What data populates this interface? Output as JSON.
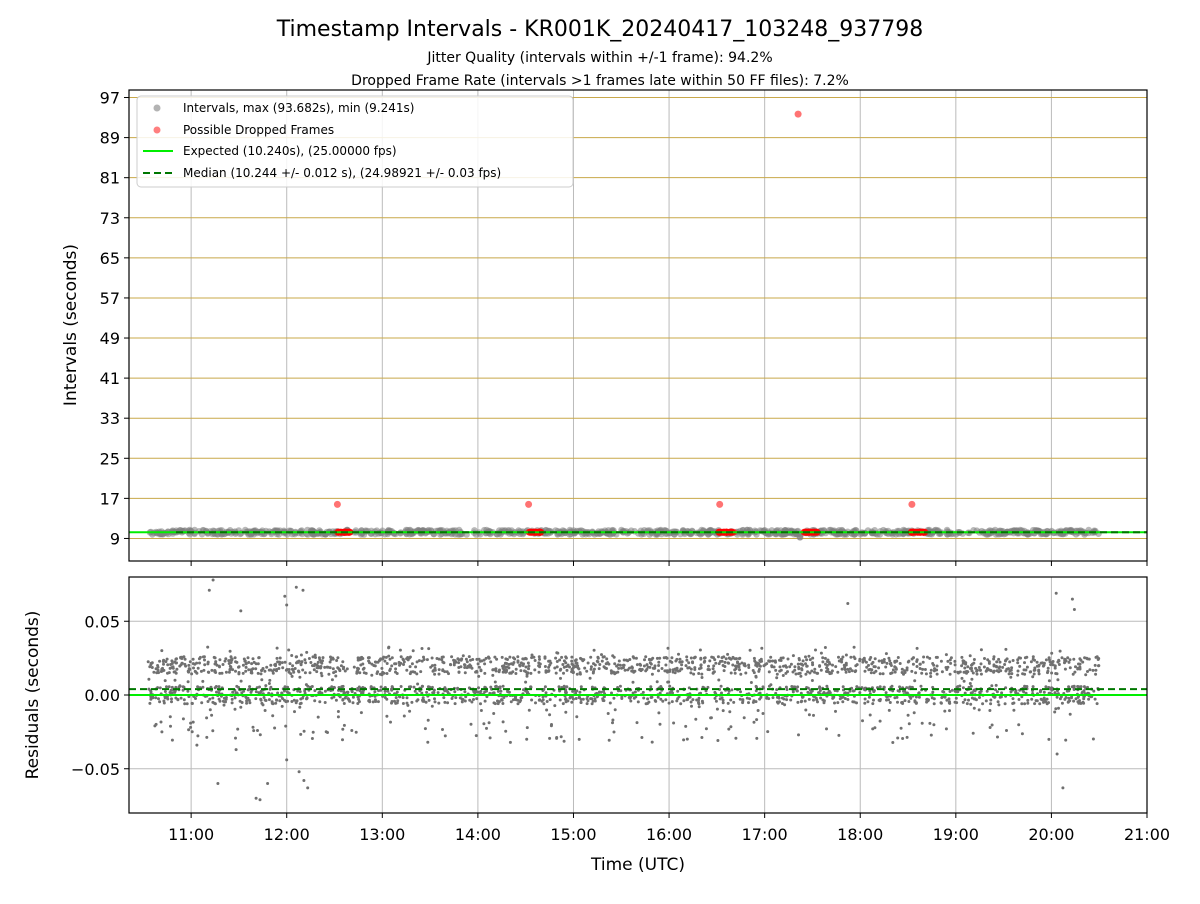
{
  "title": "Timestamp Intervals - KR001K_20240417_103248_937798",
  "subtitle_1": "Jitter Quality (intervals within +/-1 frame): 94.2%",
  "subtitle_2": "Dropped Frame Rate (intervals >1 frames late within 50 FF files): 7.2%",
  "chart_data": [
    {
      "type": "scatter",
      "ylabel": "Intervals (seconds)",
      "x_ticks": [
        "11:00",
        "12:00",
        "13:00",
        "14:00",
        "15:00",
        "16:00",
        "17:00",
        "18:00",
        "19:00",
        "20:00",
        "21:00"
      ],
      "y_ticks": [
        9,
        17,
        25,
        33,
        41,
        49,
        57,
        65,
        73,
        81,
        89,
        97
      ],
      "xlim_hours": [
        10.35,
        21.0
      ],
      "ylim": [
        4.5,
        98.5
      ],
      "grid": true,
      "legend_position": "top-left",
      "colors": {
        "intervals": "#808080",
        "dropped": "#ff0000",
        "expected": "#00ee00",
        "median": "#007700",
        "hgrid": "#c8a84a",
        "vgrid": "#bbbbbb"
      },
      "legend": [
        "Intervals, max (93.682s), min (9.241s)",
        "Possible Dropped Frames",
        "Expected (10.240s), (25.00000 fps)",
        "Median (10.244 +/- 0.012 s), (24.98921 +/- 0.03 fps)"
      ],
      "series": [
        {
          "name": "Intervals, max (93.682s), min (9.241s)",
          "x_range": [
            10.55,
            20.5
          ],
          "y_typical": 10.24,
          "min": 9.241
        },
        {
          "name": "Possible Dropped Frames",
          "points": [
            {
              "x": 12.53,
              "y": 15.8
            },
            {
              "x": 14.53,
              "y": 15.8
            },
            {
              "x": 16.53,
              "y": 15.8
            },
            {
              "x": 17.35,
              "y": 93.682
            },
            {
              "x": 18.54,
              "y": 15.8
            }
          ],
          "clusters": [
            [
              12.53,
              12.67
            ],
            [
              14.52,
              14.67
            ],
            [
              16.52,
              16.68
            ],
            [
              17.4,
              17.55
            ],
            [
              18.53,
              18.68
            ]
          ],
          "cluster_y": 10.24
        },
        {
          "name": "Expected (10.240s), (25.00000 fps)",
          "y": 10.24
        },
        {
          "name": "Median (10.244 +/- 0.012 s), (24.98921 +/- 0.03 fps)",
          "y": 10.244
        }
      ]
    },
    {
      "type": "scatter",
      "xlabel": "Time (UTC)",
      "ylabel": "Residuals (seconds)",
      "x_ticks": [
        "11:00",
        "12:00",
        "13:00",
        "14:00",
        "15:00",
        "16:00",
        "17:00",
        "18:00",
        "19:00",
        "20:00",
        "21:00"
      ],
      "y_ticks": [
        "0.05",
        "0.00",
        "−0.05"
      ],
      "y_tick_values": [
        0.05,
        0.0,
        -0.05
      ],
      "xlim_hours": [
        10.35,
        21.0
      ],
      "ylim": [
        -0.08,
        0.08
      ],
      "grid": true,
      "series": [
        {
          "name": "Residuals",
          "x_range": [
            10.55,
            20.5
          ],
          "y_range": [
            -0.072,
            0.078
          ]
        },
        {
          "name": "Expected",
          "y": 0.0
        },
        {
          "name": "Median",
          "y": 0.004
        }
      ],
      "outliers": [
        {
          "x": 11.23,
          "y": 0.078
        },
        {
          "x": 11.19,
          "y": 0.071
        },
        {
          "x": 11.52,
          "y": 0.057
        },
        {
          "x": 12.1,
          "y": 0.073
        },
        {
          "x": 11.98,
          "y": 0.067
        },
        {
          "x": 12.0,
          "y": 0.061
        },
        {
          "x": 12.17,
          "y": 0.071
        },
        {
          "x": 17.87,
          "y": 0.062
        },
        {
          "x": 20.05,
          "y": 0.069
        },
        {
          "x": 20.22,
          "y": 0.065
        },
        {
          "x": 20.24,
          "y": 0.058
        },
        {
          "x": 11.72,
          "y": -0.071
        },
        {
          "x": 11.68,
          "y": -0.07
        },
        {
          "x": 12.13,
          "y": -0.052
        },
        {
          "x": 12.18,
          "y": -0.058
        },
        {
          "x": 12.22,
          "y": -0.063
        },
        {
          "x": 11.28,
          "y": -0.06
        },
        {
          "x": 11.8,
          "y": -0.06
        },
        {
          "x": 20.12,
          "y": -0.063
        },
        {
          "x": 20.06,
          "y": -0.04
        },
        {
          "x": 11.06,
          "y": -0.034
        },
        {
          "x": 11.47,
          "y": -0.037
        },
        {
          "x": 12.0,
          "y": -0.044
        }
      ]
    }
  ]
}
